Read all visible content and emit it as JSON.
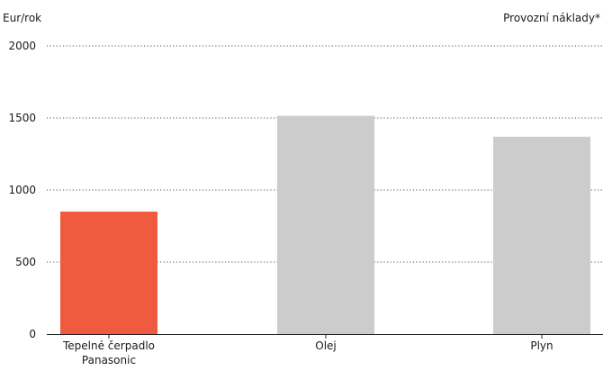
{
  "chart_data": {
    "type": "bar",
    "title": "Provozní náklady*",
    "ylabel": "Eur/rok",
    "xlabel": "",
    "categories": [
      [
        "Tepelné čerpadlo",
        "Panasonic"
      ],
      [
        "Olej"
      ],
      [
        "Plyn"
      ]
    ],
    "values": [
      850,
      1515,
      1370
    ],
    "colors": [
      "#f05a3f",
      "#cccccc",
      "#cccccc"
    ],
    "ylim": [
      0,
      2000
    ],
    "yticks": [
      0,
      500,
      1000,
      1500,
      2000
    ],
    "grid": true,
    "grid_style": "dotted"
  }
}
